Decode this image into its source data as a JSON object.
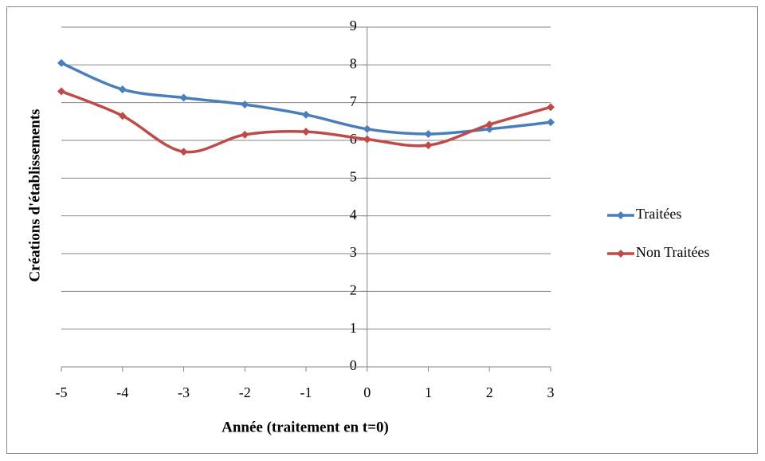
{
  "chart_data": {
    "type": "line",
    "x_label": "Année (traitement en t=0)",
    "y_label": "Créations d'établissements",
    "x": [
      -5,
      -4,
      -3,
      -2,
      -1,
      0,
      1,
      2,
      3
    ],
    "series": [
      {
        "name": "Traitées",
        "color": "#4a7ebb",
        "values": [
          8.05,
          7.35,
          7.13,
          6.95,
          6.68,
          6.3,
          6.17,
          6.3,
          6.48
        ]
      },
      {
        "name": "Non Traitées",
        "color": "#be4b48",
        "values": [
          7.3,
          6.65,
          5.7,
          6.15,
          6.23,
          6.03,
          5.87,
          6.42,
          6.88
        ]
      }
    ],
    "xlim": [
      -5,
      3
    ],
    "xticks": [
      -5,
      -4,
      -3,
      -2,
      -1,
      0,
      1,
      2,
      3
    ],
    "ylim": [
      0,
      9
    ],
    "yticks": [
      0,
      1,
      2,
      3,
      4,
      5,
      6,
      7,
      8,
      9
    ],
    "grid": true,
    "smooth": true,
    "legend": "right"
  }
}
